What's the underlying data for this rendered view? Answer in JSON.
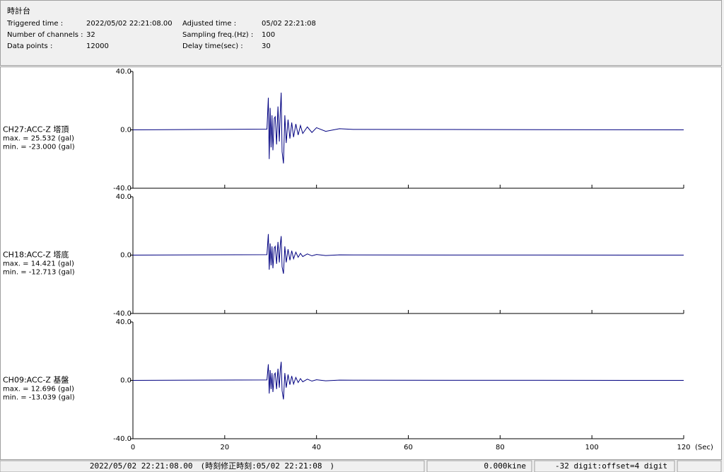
{
  "header": {
    "title": "時計台",
    "fields": [
      {
        "label": "Triggered time :",
        "value": "2022/05/02 22:21:08.00"
      },
      {
        "label": "Number of channels :",
        "value": "32"
      },
      {
        "label": "Data points :",
        "value": "12000"
      },
      {
        "label": "Adjusted time :",
        "value": "05/02 22:21:08"
      },
      {
        "label": "Sampling freq.(Hz) :",
        "value": "100"
      },
      {
        "label": "Delay time(sec) :",
        "value": "30"
      }
    ]
  },
  "chart_data": [
    {
      "type": "line",
      "channel": "CH27:ACC-Z 塔頂",
      "max_label": "max. = 25.532 (gal)",
      "min_label": "min. = -23.000 (gal)",
      "color": "#000080",
      "xlim": [
        0,
        120
      ],
      "ylim": [
        -40,
        40
      ],
      "yticks": [
        {
          "value": 40,
          "label": "40.0"
        },
        {
          "value": 0,
          "label": "0.0"
        },
        {
          "value": -40,
          "label": "-40.0"
        }
      ],
      "x": [
        0,
        29.2,
        29.5,
        29.7,
        29.9,
        30.1,
        30.3,
        30.5,
        30.8,
        31.0,
        31.3,
        31.6,
        31.9,
        32.1,
        32.3,
        32.5,
        32.8,
        33.1,
        33.4,
        33.8,
        34.2,
        34.6,
        35.0,
        35.5,
        36.0,
        36.5,
        37.0,
        38.0,
        39.0,
        40.0,
        42.0,
        45.0,
        48.0,
        120
      ],
      "values": [
        0,
        0.5,
        22,
        -20,
        15,
        -12,
        10,
        -14,
        8,
        9,
        -10,
        16,
        -8,
        12,
        25.532,
        -15,
        -23,
        10,
        -9,
        7,
        -6,
        5,
        -5,
        4,
        -3.5,
        3,
        -2.5,
        2,
        -1.8,
        1.5,
        -1,
        0.8,
        0.3,
        0
      ]
    },
    {
      "type": "line",
      "channel": "CH18:ACC-Z 塔底",
      "max_label": "max. = 14.421 (gal)",
      "min_label": "min. = -12.713 (gal)",
      "color": "#000080",
      "xlim": [
        0,
        120
      ],
      "ylim": [
        -40,
        40
      ],
      "yticks": [
        {
          "value": 40,
          "label": "40.0"
        },
        {
          "value": 0,
          "label": "0.0"
        },
        {
          "value": -40,
          "label": "-40.0"
        }
      ],
      "x": [
        0,
        29.2,
        29.5,
        29.7,
        29.9,
        30.1,
        30.3,
        30.5,
        30.8,
        31.0,
        31.3,
        31.6,
        31.9,
        32.1,
        32.3,
        32.5,
        32.8,
        33.1,
        33.4,
        33.8,
        34.2,
        34.6,
        35.0,
        35.5,
        36.0,
        36.5,
        37.0,
        38.0,
        39.0,
        40.0,
        42.0,
        45.0,
        48.0,
        120
      ],
      "values": [
        0,
        0.3,
        14.421,
        -10,
        8,
        -7,
        6,
        -9,
        5,
        6,
        -6,
        9,
        -5,
        7,
        13,
        -8,
        -12.713,
        6,
        -5,
        4,
        -3.5,
        3,
        -2.5,
        2,
        -1.5,
        1.2,
        -1,
        0.8,
        -0.5,
        0.4,
        -0.3,
        0.2,
        0.1,
        0
      ]
    },
    {
      "type": "line",
      "channel": "CH09:ACC-Z 基盤",
      "max_label": "max. = 12.696 (gal)",
      "min_label": "min. = -13.039 (gal)",
      "color": "#000080",
      "xlim": [
        0,
        120
      ],
      "ylim": [
        -40,
        40
      ],
      "yticks": [
        {
          "value": 40,
          "label": "40.0"
        },
        {
          "value": 0,
          "label": "0.0"
        },
        {
          "value": -40,
          "label": "-40.0"
        }
      ],
      "xticks": [
        0,
        20,
        40,
        60,
        80,
        100,
        120
      ],
      "xlabel": "(Sec)",
      "x": [
        0,
        29.2,
        29.5,
        29.7,
        29.9,
        30.1,
        30.3,
        30.5,
        30.8,
        31.0,
        31.3,
        31.6,
        31.9,
        32.1,
        32.3,
        32.5,
        32.8,
        33.1,
        33.4,
        33.8,
        34.2,
        34.6,
        35.0,
        35.5,
        36.0,
        36.5,
        37.0,
        38.0,
        39.0,
        40.0,
        42.0,
        45.0,
        48.0,
        120
      ],
      "values": [
        0,
        0.3,
        11,
        -9,
        7,
        -6,
        5,
        -8,
        4,
        5,
        -6,
        8,
        -5,
        7,
        12.696,
        -7,
        -13.039,
        5,
        -5,
        4,
        -3,
        3,
        -2.5,
        2,
        -1.5,
        1.2,
        -1,
        0.8,
        -0.5,
        0.4,
        -0.3,
        0.2,
        0.1,
        0
      ]
    }
  ],
  "status_bar": [
    "2022/05/02 22:21:08.00　(時刻修正時刻:05/02 22:21:08　)",
    "0.000kine",
    "-32 digit:offset=4 digit"
  ]
}
